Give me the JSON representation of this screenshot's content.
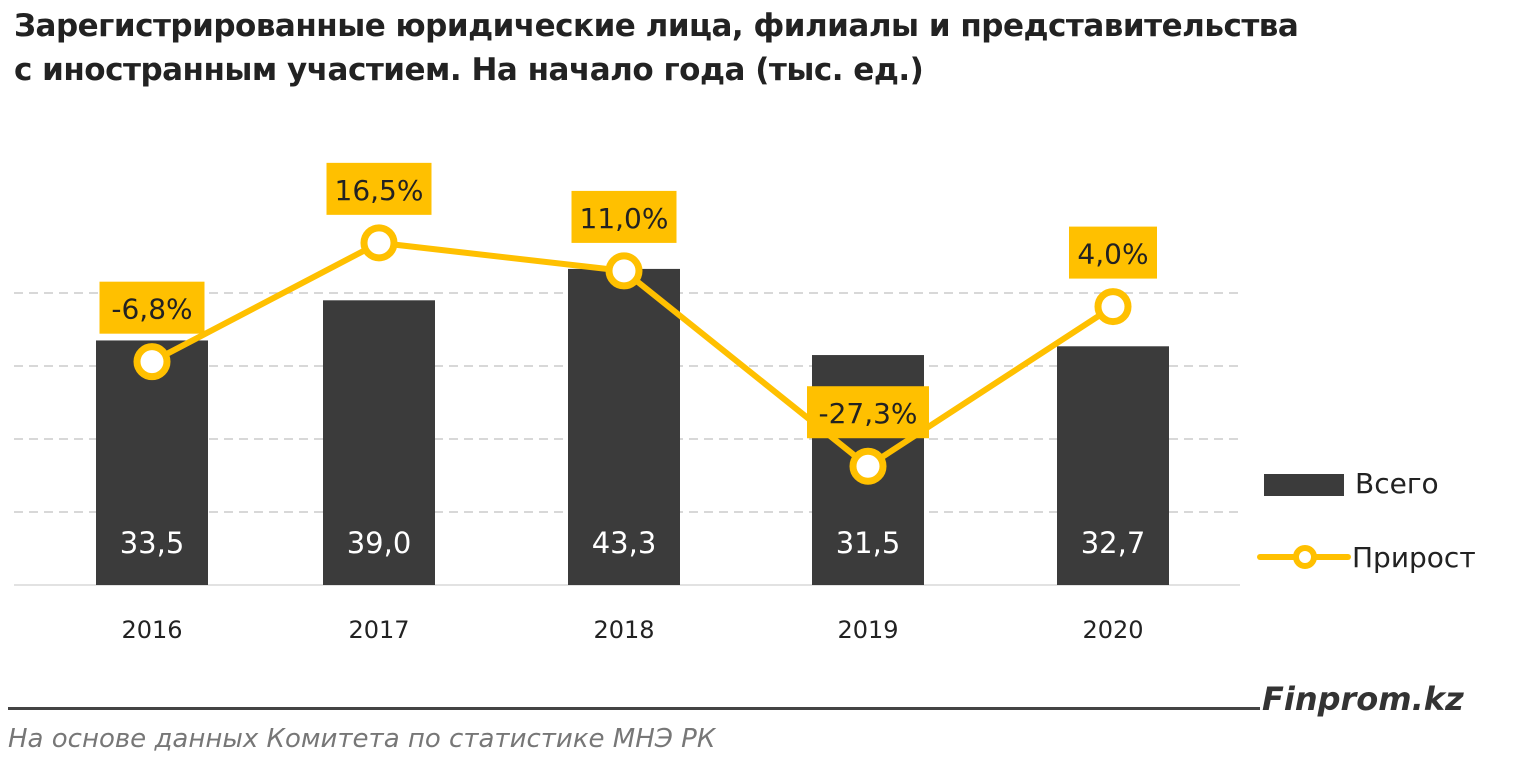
{
  "title_line1": "Зарегистрированные юридические лица, филиалы и представительства",
  "title_line2": "с иностранным участием. На начало года (тыс. ед.)",
  "brand": "Finprom.kz",
  "source": "На основе данных  Комитета по статистике МНЭ РК",
  "colors": {
    "bar": "#3b3b3b",
    "line": "#ffc000",
    "label_box": "#ffc000",
    "grid": "#cccccc"
  },
  "chart_data": {
    "type": "bar+line",
    "categories": [
      "2016",
      "2017",
      "2018",
      "2019",
      "2020"
    ],
    "series": [
      {
        "name": "Всего",
        "type": "bar",
        "axis": "primary",
        "values": [
          33.5,
          39.0,
          43.3,
          31.5,
          32.7
        ],
        "labels": [
          "33,5",
          "39,0",
          "43,3",
          "31,5",
          "32,7"
        ]
      },
      {
        "name": "Прирост",
        "type": "line",
        "axis": "secondary",
        "unit": "%",
        "values": [
          -6.8,
          16.5,
          11.0,
          -27.3,
          4.0
        ],
        "labels": [
          "-6,8%",
          "16,5%",
          "11,0%",
          "-27,3%",
          "4,0%"
        ]
      }
    ],
    "ylim": [
      0,
      50
    ],
    "grid": true,
    "legend": "right"
  }
}
